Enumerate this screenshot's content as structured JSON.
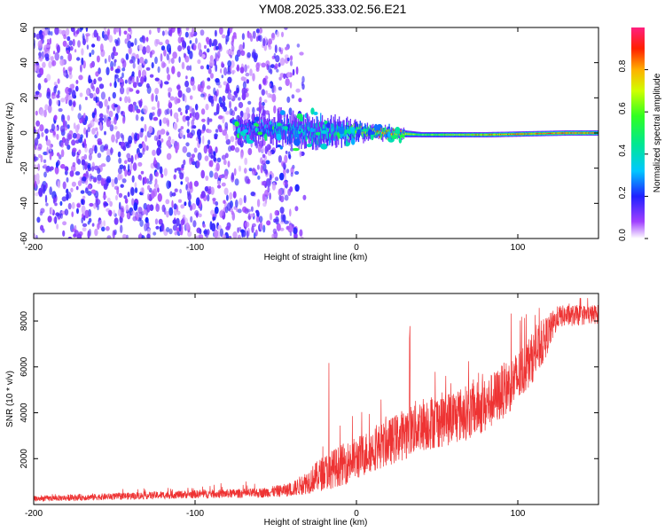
{
  "title": "YM08.2025.333.02.56.E21",
  "colorbar": {
    "label": "Normalized spectral amplitude",
    "ticks": [
      "0.0",
      "0.2",
      "0.4",
      "0.6",
      "0.8"
    ],
    "tick_values": [
      0,
      0.2,
      0.4,
      0.6,
      0.8
    ],
    "range": [
      0,
      1
    ]
  },
  "chart_data": [
    {
      "type": "heatmap",
      "name": "spectrogram",
      "xlabel": "Height of straight line (km)",
      "ylabel": "Frequency (Hz)",
      "xlim": [
        -200,
        150
      ],
      "ylim": [
        -60,
        60
      ],
      "xticks": [
        -200,
        -100,
        0,
        100
      ],
      "yticks": [
        -60,
        -40,
        -20,
        0,
        20,
        40,
        60
      ],
      "xtick_labels": [
        "-200",
        "-100",
        "0",
        "100"
      ],
      "ytick_labels": [
        "-60",
        "-40",
        "-20",
        "0",
        "20",
        "40",
        "60"
      ],
      "noise_region_km": [
        -200,
        -40
      ],
      "signal_line": [
        {
          "x": -75,
          "freq": 2,
          "amp": 0.25,
          "width_hz": 8
        },
        {
          "x": -50,
          "freq": 2,
          "amp": 0.35,
          "width_hz": 10
        },
        {
          "x": -25,
          "freq": 1,
          "amp": 0.4,
          "width_hz": 12
        },
        {
          "x": -10,
          "freq": 1,
          "amp": 0.45,
          "width_hz": 10
        },
        {
          "x": 5,
          "freq": 1,
          "amp": 0.7,
          "width_hz": 6
        },
        {
          "x": 20,
          "freq": 0,
          "amp": 0.85,
          "width_hz": 5
        },
        {
          "x": 40,
          "freq": -1,
          "amp": 0.6,
          "width_hz": 3
        },
        {
          "x": 80,
          "freq": -1,
          "amp": 0.8,
          "width_hz": 3
        },
        {
          "x": 130,
          "freq": 0,
          "amp": 0.9,
          "width_hz": 3
        },
        {
          "x": 150,
          "freq": 0,
          "amp": 0.85,
          "width_hz": 3
        }
      ]
    },
    {
      "type": "line",
      "name": "snr",
      "xlabel": "Height of straight line (km)",
      "ylabel": "SNR (10 * v/v)",
      "xlim": [
        -200,
        150
      ],
      "ylim": [
        0,
        9200
      ],
      "xticks": [
        -200,
        -100,
        0,
        100
      ],
      "yticks": [
        2000,
        4000,
        6000,
        8000
      ],
      "xtick_labels": [
        "-200",
        "-100",
        "0",
        "100"
      ],
      "ytick_labels": [
        "2000",
        "4000",
        "6000",
        "8000"
      ],
      "color": "#ee3333",
      "envelope": {
        "x": [
          -200,
          -150,
          -100,
          -60,
          -40,
          -30,
          -20,
          -10,
          0,
          10,
          20,
          30,
          40,
          60,
          80,
          100,
          115,
          125,
          150
        ],
        "median": [
          250,
          350,
          450,
          500,
          650,
          1000,
          1400,
          1700,
          2000,
          2400,
          2700,
          3100,
          3500,
          3800,
          4300,
          5500,
          7000,
          8200,
          8300
        ],
        "spread": [
          200,
          250,
          300,
          350,
          500,
          900,
          1300,
          1500,
          1600,
          1600,
          1700,
          1900,
          2000,
          2000,
          2000,
          2000,
          1700,
          800,
          700
        ]
      },
      "peaks": [
        {
          "x": -17,
          "y": 6400
        },
        {
          "x": 33,
          "y": 7800
        },
        {
          "x": 105,
          "y": 8600
        }
      ]
    }
  ]
}
